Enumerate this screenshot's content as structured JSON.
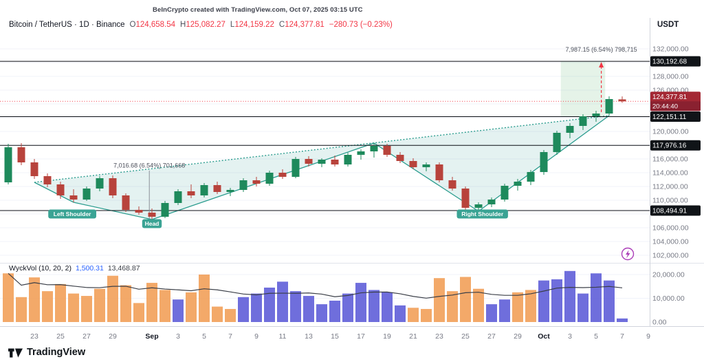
{
  "header": {
    "watermark": "BeInCrypto created with TradingView.com, Oct 07, 2025 03:15 UTC",
    "symbol": "Bitcoin / TetherUS · 1D · Binance",
    "ohlc": {
      "o_label": "O",
      "o": "124,658.54",
      "h_label": "H",
      "h": "125,082.27",
      "l_label": "L",
      "l": "124,159.22",
      "c_label": "C",
      "c": "124,377.81",
      "change": "−280.73 (−0.23%)"
    },
    "currency": "USDT"
  },
  "indicator": {
    "name": "WyckVol (10, 20, 2)",
    "value1": "1,500.31",
    "value2": "13,468.87"
  },
  "footer": {
    "brand": "TradingView"
  },
  "colors": {
    "up": "#1e8a5c",
    "down": "#b8433c",
    "teal": "#2a9c8e",
    "tealFill": "rgba(47,158,143,0.13)",
    "greenBox": "rgba(96,178,112,0.16)",
    "red": "#f23645",
    "volOrange": "#f2a25c",
    "volBlue": "#6362d9",
    "axisText": "#787b86",
    "grid": "#f0f3fa",
    "badgeDark": "#101418",
    "badgeRed": "#a42834",
    "badgeRedDark": "#8a2130",
    "maLine": "#3a3e47",
    "patternBadge": "#3aa394",
    "separator": "#d1d4dc",
    "purple": "#ab3db8"
  },
  "price_axis": {
    "labels": [
      {
        "text": "132,000.00",
        "price": 132000
      },
      {
        "text": "128,000.00",
        "price": 128000
      },
      {
        "text": "126,000.00",
        "price": 126000
      },
      {
        "text": "120,000.00",
        "price": 120000
      },
      {
        "text": "116,000.00",
        "price": 116000
      },
      {
        "text": "114,000.00",
        "price": 114000
      },
      {
        "text": "112,000.00",
        "price": 112000
      },
      {
        "text": "110,000.00",
        "price": 110000
      },
      {
        "text": "106,000.00",
        "price": 106000
      },
      {
        "text": "104,000.00",
        "price": 104000
      },
      {
        "text": "102,000.00",
        "price": 102000
      }
    ],
    "badges": [
      {
        "text": "130,192.68",
        "price": 130192.68,
        "type": "dark"
      },
      {
        "text": "124,377.81",
        "sub": "20:44:40",
        "price": 124377.81,
        "type": "red"
      },
      {
        "text": "122,151.11",
        "price": 122151.11,
        "type": "dark"
      },
      {
        "text": "117,976.16",
        "price": 117976.16,
        "type": "dark"
      },
      {
        "text": "108,494.91",
        "price": 108494.91,
        "type": "dark"
      }
    ]
  },
  "volume_axis": {
    "labels": [
      {
        "text": "20,000.00",
        "value": 20000
      },
      {
        "text": "10,000.00",
        "value": 10000
      },
      {
        "text": "0.00",
        "value": 0
      }
    ]
  },
  "annotations": {
    "levels": [
      130192.68,
      122151.11,
      117976.16,
      108494.91
    ],
    "current_price_line": 124377.81,
    "neckline": {
      "from": {
        "i": 2,
        "price": 112600
      },
      "to": {
        "i": 46,
        "price": 122300
      }
    },
    "zigzag": [
      {
        "i": 2,
        "price": 112600
      },
      {
        "i": 5,
        "price": 109700
      },
      {
        "i": 11,
        "price": 107200
      },
      {
        "i": 28,
        "price": 118300
      },
      {
        "i": 36,
        "price": 108400
      },
      {
        "i": 46,
        "price": 122300
      }
    ],
    "projection_box": {
      "i_from": 42.3,
      "i_to": 45.7,
      "price_top": 130192.68,
      "price_bottom": 122151.11
    },
    "left_measure": {
      "label": "7,016.68 (6.54%) 701,668",
      "i": 10.8,
      "price_top": 114317,
      "price_bottom": 107285,
      "label_price": 114750
    },
    "right_measure": {
      "label": "7,987.15 (6.54%) 798,715",
      "i": 45.4,
      "price_from": 122800,
      "price_to": 130100,
      "label_price": 131600
    },
    "pattern_labels": [
      {
        "text": "Left Shoulder",
        "i": 4.9,
        "price": 108000
      },
      {
        "text": "Head",
        "i": 11,
        "price": 106600
      },
      {
        "text": "Right Shoulder",
        "i": 36.3,
        "price": 108000
      }
    ]
  },
  "chart_data": {
    "type": "candlestick",
    "pair": "BTC/USDT",
    "exchange": "Binance",
    "interval": "1D",
    "price_range": [
      101300,
      133300
    ],
    "volume_ma_window": 10,
    "dates": [
      "2025-08-21",
      "2025-08-22",
      "2025-08-23",
      "2025-08-24",
      "2025-08-25",
      "2025-08-26",
      "2025-08-27",
      "2025-08-28",
      "2025-08-29",
      "2025-08-30",
      "2025-08-31",
      "2025-09-01",
      "2025-09-02",
      "2025-09-03",
      "2025-09-04",
      "2025-09-05",
      "2025-09-06",
      "2025-09-07",
      "2025-09-08",
      "2025-09-09",
      "2025-09-10",
      "2025-09-11",
      "2025-09-12",
      "2025-09-13",
      "2025-09-14",
      "2025-09-15",
      "2025-09-16",
      "2025-09-17",
      "2025-09-18",
      "2025-09-19",
      "2025-09-20",
      "2025-09-21",
      "2025-09-22",
      "2025-09-23",
      "2025-09-24",
      "2025-09-25",
      "2025-09-26",
      "2025-09-27",
      "2025-09-28",
      "2025-09-29",
      "2025-09-30",
      "2025-10-01",
      "2025-10-02",
      "2025-10-03",
      "2025-10-04",
      "2025-10-05",
      "2025-10-06",
      "2025-10-07"
    ],
    "ohlc": [
      [
        112600,
        118200,
        112300,
        117700
      ],
      [
        117700,
        118300,
        115100,
        115500
      ],
      [
        115500,
        116000,
        113100,
        113500
      ],
      [
        113500,
        113900,
        111900,
        112300
      ],
      [
        112300,
        112700,
        110200,
        110700
      ],
      [
        110700,
        111600,
        109700,
        110100
      ],
      [
        110100,
        112000,
        109900,
        111700
      ],
      [
        111700,
        113500,
        111300,
        113200
      ],
      [
        113200,
        113600,
        110300,
        110700
      ],
      [
        110700,
        111000,
        108300,
        108600
      ],
      [
        108600,
        109100,
        107900,
        108200
      ],
      [
        108200,
        108800,
        107200,
        107600
      ],
      [
        107600,
        109900,
        107400,
        109600
      ],
      [
        109600,
        111600,
        109300,
        111300
      ],
      [
        111300,
        112300,
        110300,
        110700
      ],
      [
        110700,
        112500,
        110400,
        112200
      ],
      [
        112200,
        112700,
        110900,
        111200
      ],
      [
        111200,
        111800,
        110600,
        111500
      ],
      [
        111500,
        113200,
        111200,
        112900
      ],
      [
        112900,
        113400,
        112000,
        112400
      ],
      [
        112400,
        114300,
        112100,
        114000
      ],
      [
        114000,
        114500,
        113100,
        113400
      ],
      [
        113400,
        116300,
        113200,
        116000
      ],
      [
        116000,
        116400,
        114900,
        115300
      ],
      [
        115300,
        116100,
        114800,
        115900
      ],
      [
        115900,
        116500,
        114900,
        115200
      ],
      [
        115200,
        116900,
        114900,
        116600
      ],
      [
        116600,
        117400,
        115900,
        117100
      ],
      [
        117100,
        118300,
        116200,
        117900
      ],
      [
        117900,
        118200,
        116300,
        116600
      ],
      [
        116600,
        117000,
        115400,
        115700
      ],
      [
        115700,
        116100,
        114500,
        114800
      ],
      [
        114800,
        115500,
        114200,
        115200
      ],
      [
        115200,
        115500,
        112600,
        112900
      ],
      [
        112900,
        113400,
        111400,
        111700
      ],
      [
        111700,
        112000,
        108600,
        108900
      ],
      [
        108900,
        109700,
        108400,
        109400
      ],
      [
        109400,
        110400,
        109000,
        110100
      ],
      [
        110100,
        112400,
        109800,
        112100
      ],
      [
        112100,
        113100,
        111400,
        112700
      ],
      [
        112700,
        114400,
        112200,
        114100
      ],
      [
        114100,
        117300,
        113700,
        117000
      ],
      [
        117000,
        120100,
        116600,
        119800
      ],
      [
        119800,
        121200,
        119000,
        120800
      ],
      [
        120800,
        122500,
        120200,
        122200
      ],
      [
        122200,
        123000,
        121400,
        122600
      ],
      [
        122600,
        125100,
        122300,
        124700
      ],
      [
        124658.54,
        125082.27,
        124159.22,
        124377.81
      ]
    ],
    "volume": [
      20500,
      10500,
      18800,
      13000,
      16000,
      12000,
      11000,
      14000,
      19500,
      15500,
      8000,
      16500,
      13500,
      9500,
      12500,
      20000,
      6500,
      5500,
      10500,
      12000,
      14500,
      17000,
      13000,
      11000,
      7500,
      9000,
      12000,
      16500,
      13500,
      12500,
      7000,
      6000,
      5500,
      18500,
      13000,
      19000,
      14000,
      7500,
      9500,
      12500,
      13500,
      17500,
      18000,
      21500,
      12000,
      20500,
      17500,
      1500
    ],
    "volume_colors": [
      "o",
      "o",
      "o",
      "o",
      "o",
      "o",
      "o",
      "o",
      "o",
      "o",
      "o",
      "o",
      "o",
      "b",
      "o",
      "o",
      "o",
      "o",
      "b",
      "b",
      "b",
      "b",
      "b",
      "b",
      "b",
      "b",
      "b",
      "b",
      "b",
      "b",
      "b",
      "o",
      "o",
      "o",
      "o",
      "o",
      "o",
      "b",
      "b",
      "o",
      "o",
      "b",
      "b",
      "b",
      "b",
      "b",
      "b",
      "b"
    ],
    "x_tick_labels": [
      {
        "label": "23",
        "index": 2
      },
      {
        "label": "25",
        "index": 4
      },
      {
        "label": "27",
        "index": 6
      },
      {
        "label": "29",
        "index": 8
      },
      {
        "label": "Sep",
        "index": 11
      },
      {
        "label": "3",
        "index": 13
      },
      {
        "label": "5",
        "index": 15
      },
      {
        "label": "7",
        "index": 17
      },
      {
        "label": "9",
        "index": 19
      },
      {
        "label": "11",
        "index": 21
      },
      {
        "label": "13",
        "index": 23
      },
      {
        "label": "15",
        "index": 25
      },
      {
        "label": "17",
        "index": 27
      },
      {
        "label": "19",
        "index": 29
      },
      {
        "label": "21",
        "index": 31
      },
      {
        "label": "23",
        "index": 33
      },
      {
        "label": "25",
        "index": 35
      },
      {
        "label": "27",
        "index": 37
      },
      {
        "label": "29",
        "index": 39
      },
      {
        "label": "Oct",
        "index": 41
      },
      {
        "label": "3",
        "index": 43
      },
      {
        "label": "5",
        "index": 45
      },
      {
        "label": "7",
        "index": 47
      },
      {
        "label": "9",
        "index": 49
      }
    ]
  }
}
